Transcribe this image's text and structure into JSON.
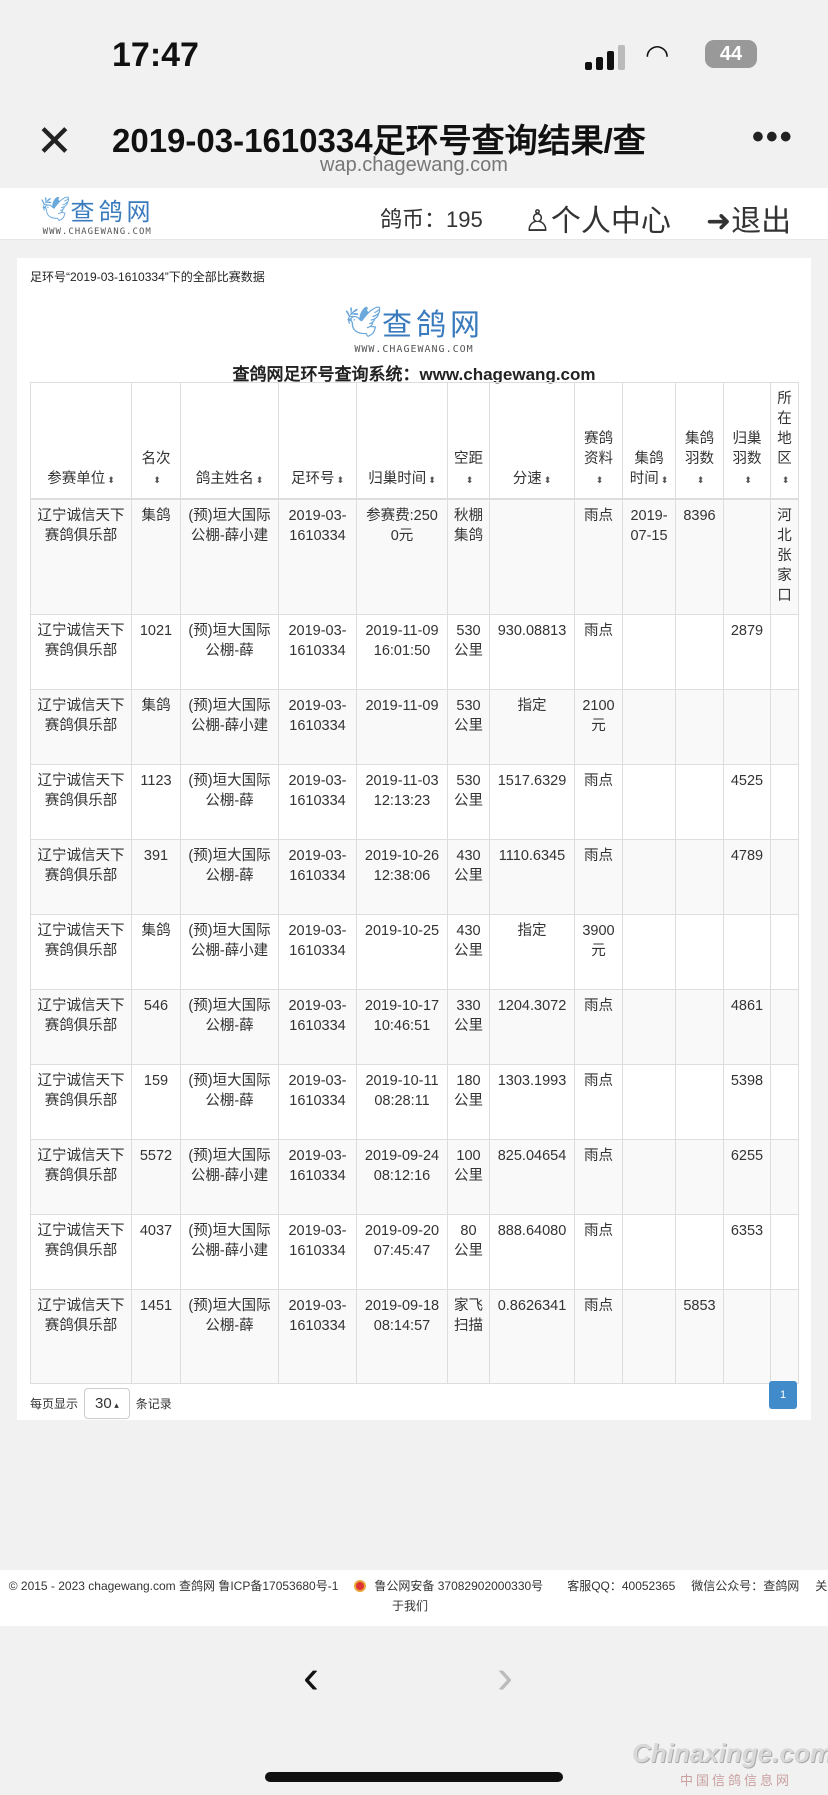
{
  "status": {
    "time": "17:47",
    "battery": "44"
  },
  "browser": {
    "title": "2019-03-1610334足环号查询结果/查",
    "url": "wap.chagewang.com"
  },
  "header": {
    "logo_name": "查鸽网",
    "logo_sub": "WWW.CHAGEWANG.COM",
    "coins": "鸽币：195",
    "user_center": "个人中心",
    "logout": "退出"
  },
  "main": {
    "caption": "足环号“2019-03-1610334”下的全部比赛数据",
    "logo_name": "查鸽网",
    "logo_sub": "WWW.CHAGEWANG.COM",
    "system_title": "查鸽网足环号查询系统：www.chagewang.com"
  },
  "table": {
    "columns": [
      "参赛单位",
      "名次",
      "鸽主姓名",
      "足环号",
      "归巢时间",
      "空距",
      "分速",
      "赛鸽资料",
      "集鸽时间",
      "集鸽羽数",
      "归巢羽数",
      "所在地区"
    ],
    "rows": [
      [
        "辽宁诚信天下赛鸽俱乐部",
        "集鸽",
        "(预)垣大国际公棚-薛小建",
        "2019-03-1610334",
        "参赛费:2500元",
        "秋棚集鸽",
        "",
        "雨点",
        "2019-07-15",
        "8396",
        "",
        "河北张家口"
      ],
      [
        "辽宁诚信天下赛鸽俱乐部",
        "1021",
        "(预)垣大国际公棚-薛",
        "2019-03-1610334",
        "2019-11-09 16:01:50",
        "530公里",
        "930.08813",
        "雨点",
        "",
        "",
        "2879",
        ""
      ],
      [
        "辽宁诚信天下赛鸽俱乐部",
        "集鸽",
        "(预)垣大国际公棚-薛小建",
        "2019-03-1610334",
        "2019-11-09",
        "530公里",
        "指定",
        "2100元",
        "",
        "",
        "",
        ""
      ],
      [
        "辽宁诚信天下赛鸽俱乐部",
        "1123",
        "(预)垣大国际公棚-薛",
        "2019-03-1610334",
        "2019-11-03 12:13:23",
        "530公里",
        "1517.6329",
        "雨点",
        "",
        "",
        "4525",
        ""
      ],
      [
        "辽宁诚信天下赛鸽俱乐部",
        "391",
        "(预)垣大国际公棚-薛",
        "2019-03-1610334",
        "2019-10-26 12:38:06",
        "430公里",
        "1110.6345",
        "雨点",
        "",
        "",
        "4789",
        ""
      ],
      [
        "辽宁诚信天下赛鸽俱乐部",
        "集鸽",
        "(预)垣大国际公棚-薛小建",
        "2019-03-1610334",
        "2019-10-25",
        "430公里",
        "指定",
        "3900元",
        "",
        "",
        "",
        ""
      ],
      [
        "辽宁诚信天下赛鸽俱乐部",
        "546",
        "(预)垣大国际公棚-薛",
        "2019-03-1610334",
        "2019-10-17 10:46:51",
        "330公里",
        "1204.3072",
        "雨点",
        "",
        "",
        "4861",
        ""
      ],
      [
        "辽宁诚信天下赛鸽俱乐部",
        "159",
        "(预)垣大国际公棚-薛",
        "2019-03-1610334",
        "2019-10-11 08:28:11",
        "180公里",
        "1303.1993",
        "雨点",
        "",
        "",
        "5398",
        ""
      ],
      [
        "辽宁诚信天下赛鸽俱乐部",
        "5572",
        "(预)垣大国际公棚-薛小建",
        "2019-03-1610334",
        "2019-09-24 08:12:16",
        "100公里",
        "825.04654",
        "雨点",
        "",
        "",
        "6255",
        ""
      ],
      [
        "辽宁诚信天下赛鸽俱乐部",
        "4037",
        "(预)垣大国际公棚-薛小建",
        "2019-03-1610334",
        "2019-09-20 07:45:47",
        "80公里",
        "888.64080",
        "雨点",
        "",
        "",
        "6353",
        ""
      ],
      [
        "辽宁诚信天下赛鸽俱乐部",
        "1451",
        "(预)垣大国际公棚-薛",
        "2019-03-1610334",
        "2019-09-18 08:14:57",
        "家飞扫描",
        "0.8626341",
        "雨点",
        "",
        "5853",
        "",
        ""
      ]
    ]
  },
  "pagination": {
    "per_page_label": "每页显示",
    "per_page_value": "30",
    "records_label": "条记录",
    "current_page": "1"
  },
  "footer": {
    "copyright": "© 2015 - 2023 chagewang.com 查鸽网 鲁ICP备17053680号-1",
    "police": "鲁公网安备 37082902000330号",
    "qq": "客服QQ：40052365",
    "wechat": "微信公众号：查鸽网",
    "about": "关于我们"
  },
  "watermark": {
    "text": "Chinaxinge.com",
    "sub": "中国信鸽信息网"
  },
  "colors": {
    "accent": "#428bca",
    "logo": "#3a7bbd",
    "background": "#f1f1f1"
  }
}
